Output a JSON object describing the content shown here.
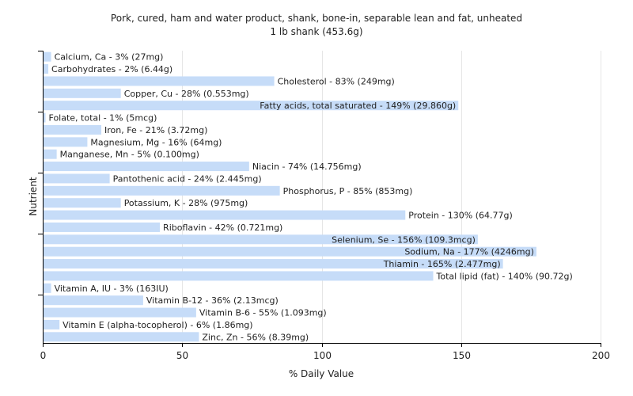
{
  "chart_data": {
    "type": "bar",
    "orientation": "horizontal",
    "title": "Pork, cured, ham and water product, shank, bone-in, separable lean and fat, unheated",
    "subtitle": "1 lb shank (453.6g)",
    "xlabel": "% Daily Value",
    "ylabel": "Nutrient",
    "xlim": [
      0,
      200
    ],
    "xticks": [
      0,
      50,
      100,
      150,
      200
    ],
    "grid": true,
    "bar_color": "#c6dcf8",
    "grid_color": "#e6e6e6",
    "axis_color": "#000000",
    "categories": [
      "Calcium, Ca",
      "Carbohydrates",
      "Cholesterol",
      "Copper, Cu",
      "Fatty acids, total saturated",
      "Folate, total",
      "Iron, Fe",
      "Magnesium, Mg",
      "Manganese, Mn",
      "Niacin",
      "Pantothenic acid",
      "Phosphorus, P",
      "Potassium, K",
      "Protein",
      "Riboflavin",
      "Selenium, Se",
      "Sodium, Na",
      "Thiamin",
      "Total lipid (fat)",
      "Vitamin A, IU",
      "Vitamin B-12",
      "Vitamin B-6",
      "Vitamin E (alpha-tocopherol)",
      "Zinc, Zn"
    ],
    "values": [
      3,
      2,
      83,
      28,
      149,
      1,
      21,
      16,
      5,
      74,
      24,
      85,
      28,
      130,
      42,
      156,
      177,
      165,
      140,
      3,
      36,
      55,
      6,
      56
    ],
    "labels": [
      "Calcium, Ca - 3% (27mg)",
      "Carbohydrates - 2% (6.44g)",
      "Cholesterol - 83% (249mg)",
      "Copper, Cu - 28% (0.553mg)",
      "Fatty acids, total saturated - 149% (29.860g)",
      "Folate, total - 1% (5mcg)",
      "Iron, Fe - 21% (3.72mg)",
      "Magnesium, Mg - 16% (64mg)",
      "Manganese, Mn - 5% (0.100mg)",
      "Niacin - 74% (14.756mg)",
      "Pantothenic acid - 24% (2.445mg)",
      "Phosphorus, P - 85% (853mg)",
      "Potassium, K - 28% (975mg)",
      "Protein - 130% (64.77g)",
      "Riboflavin - 42% (0.721mg)",
      "Selenium, Se - 156% (109.3mcg)",
      "Sodium, Na - 177% (4246mg)",
      "Thiamin - 165% (2.477mg)",
      "Total lipid (fat) - 140% (90.72g)",
      "Vitamin A, IU - 3% (163IU)",
      "Vitamin B-12 - 36% (2.13mcg)",
      "Vitamin B-6 - 55% (1.093mg)",
      "Vitamin E (alpha-tocopherol) - 6% (1.86mg)",
      "Zinc, Zn - 56% (8.39mg)"
    ]
  }
}
